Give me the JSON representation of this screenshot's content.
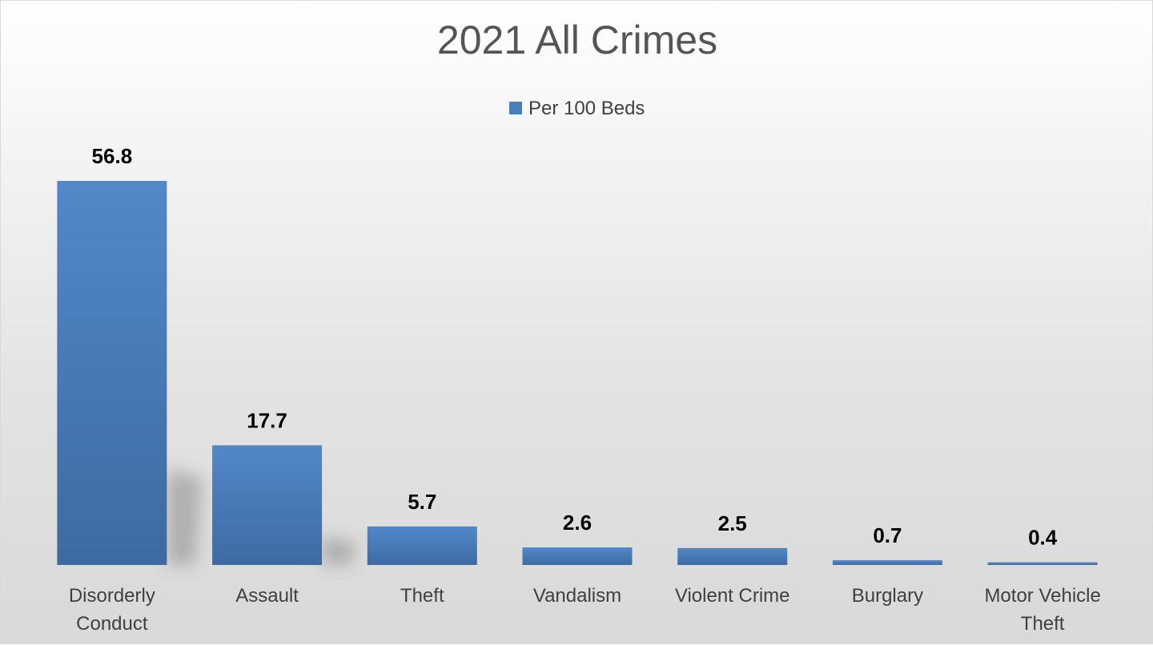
{
  "chart_data": {
    "type": "bar",
    "title": "2021 All Crimes",
    "xlabel": "",
    "ylabel": "",
    "ylim": [
      0,
      60
    ],
    "grid": false,
    "legend_position": "top",
    "categories": [
      "Disorderly Conduct",
      "Assault",
      "Theft",
      "Vandalism",
      "Violent Crime",
      "Burglary",
      "Motor Vehicle Theft"
    ],
    "series": [
      {
        "name": "Per 100 Beds",
        "values": [
          56.8,
          17.7,
          5.7,
          2.6,
          2.5,
          0.7,
          0.4
        ],
        "data_labels": [
          "56.8",
          "17.7",
          "5.7",
          "2.6",
          "2.5",
          "0.7",
          "0.4"
        ],
        "color": "#4a7ebb"
      }
    ]
  },
  "colors": {
    "bar_top": "#5288c9",
    "bar_bottom": "#3e6aa3",
    "title": "#555555",
    "axis_text": "#404040"
  }
}
